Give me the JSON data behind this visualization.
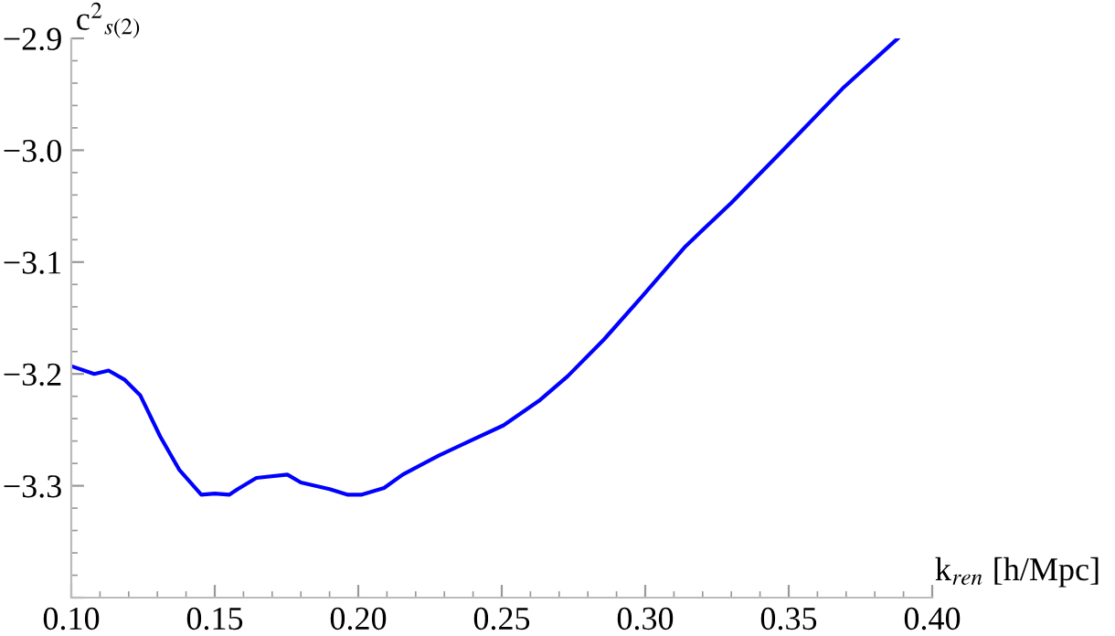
{
  "chart_data": {
    "type": "line",
    "xlabel": "k$_{ren}$ [h/Mpc]",
    "ylabel": "c$^{2}$$_{s(2)}$",
    "xlim": [
      0.1,
      0.4
    ],
    "ylim": [
      -3.4,
      -2.9
    ],
    "xticks": [
      {
        "value": 0.1,
        "label": "0.10"
      },
      0.15,
      {
        "value": 0.2,
        "label": "0.20"
      },
      0.25,
      {
        "value": 0.3,
        "label": "0.30"
      },
      0.35,
      {
        "value": 0.4,
        "label": "0.40"
      }
    ],
    "yticks": [
      {
        "value": -3.4,
        "label": null
      },
      {
        "value": -3.3,
        "label": "−3.3"
      },
      {
        "value": -3.2,
        "label": "−3.2"
      },
      {
        "value": -3.1,
        "label": "−3.1"
      },
      {
        "value": -3.0,
        "label": "−3.0"
      },
      {
        "value": -2.9,
        "label": "−2.9"
      }
    ],
    "grid": false,
    "series": [
      {
        "color": "#0000ff",
        "x": [
          0.1,
          0.108,
          0.113,
          0.1185,
          0.124,
          0.131,
          0.1377,
          0.1453,
          0.15,
          0.155,
          0.158,
          0.1645,
          0.1753,
          0.18,
          0.19,
          0.1964,
          0.201,
          0.209,
          0.2155,
          0.228,
          0.238,
          0.2506,
          0.263,
          0.273,
          0.2857,
          0.2985,
          0.314,
          0.33,
          0.3495,
          0.3687,
          0.388
        ],
        "values": [
          -3.193,
          -3.2,
          -3.197,
          -3.205,
          -3.219,
          -3.256,
          -3.286,
          -3.308,
          -3.307,
          -3.308,
          -3.303,
          -3.293,
          -3.29,
          -3.297,
          -3.303,
          -3.308,
          -3.308,
          -3.302,
          -3.29,
          -3.273,
          -3.261,
          -3.246,
          -3.224,
          -3.202,
          -3.169,
          -3.132,
          -3.086,
          -3.047,
          -2.996,
          -2.945,
          -2.9
        ]
      }
    ]
  }
}
